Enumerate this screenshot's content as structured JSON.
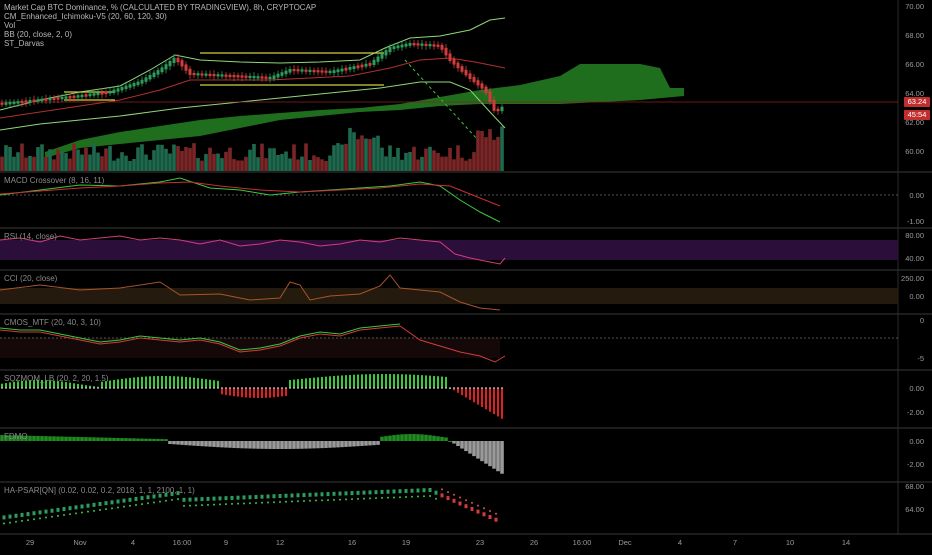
{
  "legend": {
    "line1": "Market Cap BTC Dominance, % (CALCULATED BY TRADINGVIEW), 8h, CRYPTOCAP",
    "line2": "CM_Enhanced_Ichimoku-V5 (20, 60, 120, 30)",
    "line3": "Vol",
    "line4": "BB (20, close, 2, 0)",
    "line5": "ST_Darvas"
  },
  "panes": {
    "macd": "MACD Crossover (8, 16, 11)",
    "rsi": "RSI (14, close)",
    "cci": "CCI (20, close)",
    "cmo": "CMOS_MTF (20, 40, 3, 10)",
    "sqz": "SQZMOM_LB (20, 2, 20, 1.5)",
    "fdmo": "FDMO",
    "psar": "HA-PSAR[QN] (0.02, 0.02, 0.2, 2018, 1, 1, 2100, 1, 1)"
  },
  "price_axis": [
    "70.00",
    "68.00",
    "66.00",
    "64.00",
    "62.00",
    "60.00"
  ],
  "macd_axis": [
    "0.00",
    "-1.00"
  ],
  "rsi_axis": [
    "80.00",
    "40.00"
  ],
  "cci_axis": [
    "250.00",
    "0.00"
  ],
  "cmo_axis": [
    "0",
    "-5"
  ],
  "sqz_axis": [
    "0.00",
    "-2.00"
  ],
  "fdmo_axis": [
    "0.00",
    "-2.00"
  ],
  "psar_axis": [
    "68.00",
    "64.00"
  ],
  "price_tag": "63.24",
  "countdown_tag": "45:54",
  "time_axis": [
    "29",
    "Nov",
    "4",
    "16:00",
    "9",
    "12",
    "16",
    "19",
    "23",
    "26",
    "16:00",
    "Dec",
    "4",
    "7",
    "10",
    "14"
  ],
  "colors": {
    "up": "#2e9c5c",
    "down": "#d23c3c",
    "cloud": "#1e6e1e",
    "bb": "#8fd77a",
    "darvas": "#d0d040",
    "rsi_bg": "#2c0e3a",
    "sqz_up": "#3cc83c",
    "sqz_down": "#e02020",
    "fdmo_up": "#1e8c1e",
    "fdmo_down": "#9a9a9a"
  }
}
